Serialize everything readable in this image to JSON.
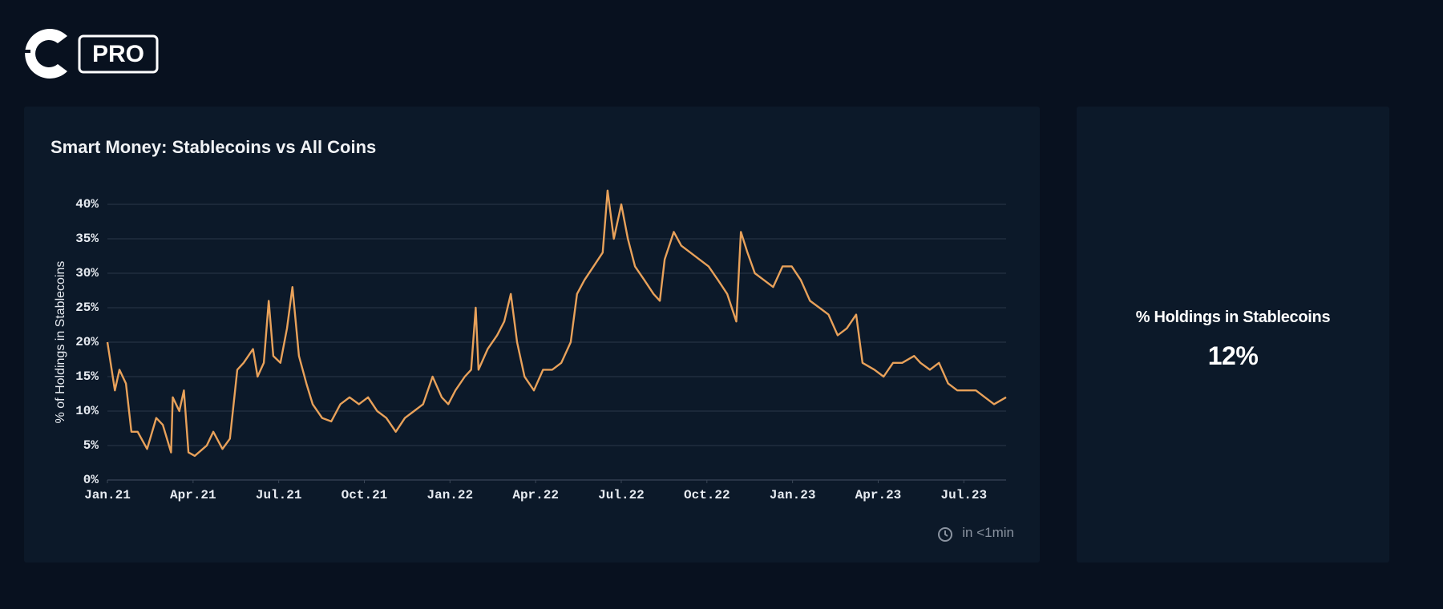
{
  "header": {
    "badge": "PRO"
  },
  "chart_data": {
    "type": "line",
    "title": "Smart Money: Stablecoins vs All Coins",
    "ylabel": "% of Holdings in Stablecoins",
    "color": "#e8a15a",
    "grid": true,
    "x": [
      0,
      0.26,
      0.42,
      0.65,
      0.84,
      1.06,
      1.39,
      1.71,
      1.94,
      2.23,
      2.29,
      2.52,
      2.68,
      2.84,
      3.06,
      3.48,
      3.71,
      4.03,
      4.29,
      4.55,
      4.77,
      5.1,
      5.26,
      5.48,
      5.65,
      5.81,
      6.06,
      6.29,
      6.48,
      6.71,
      6.97,
      7.19,
      7.52,
      7.84,
      8.16,
      8.48,
      8.81,
      9.13,
      9.45,
      9.77,
      10.1,
      10.42,
      10.74,
      11.06,
      11.39,
      11.71,
      11.94,
      12.19,
      12.52,
      12.74,
      12.9,
      13,
      13.32,
      13.65,
      13.9,
      14.13,
      14.35,
      14.61,
      14.94,
      15.26,
      15.58,
      15.9,
      16.23,
      16.45,
      16.71,
      17.03,
      17.35,
      17.52,
      17.74,
      18,
      18.23,
      18.48,
      18.81,
      19.13,
      19.35,
      19.52,
      19.84,
      20.1,
      20.42,
      20.74,
      21.06,
      21.39,
      21.71,
      22.03,
      22.19,
      22.42,
      22.68,
      23,
      23.32,
      23.65,
      23.97,
      24.29,
      24.61,
      24.94,
      25.26,
      25.58,
      25.9,
      26.23,
      26.45,
      26.87,
      27.19,
      27.52,
      27.84,
      28.26,
      28.48,
      28.81,
      29.13,
      29.45,
      29.77,
      30.1,
      30.42,
      30.74,
      31.06,
      31.48
    ],
    "values": [
      20,
      13,
      16,
      14,
      7,
      7,
      4.5,
      9,
      8,
      4,
      12,
      10,
      13,
      4,
      3.5,
      5,
      7,
      4.5,
      6,
      16,
      17,
      19,
      15,
      17,
      26,
      18,
      17,
      22,
      28,
      18,
      14,
      11,
      9,
      8.5,
      11,
      12,
      11,
      12,
      10,
      9,
      7,
      9,
      10,
      11,
      15,
      12,
      11,
      13,
      15,
      16,
      25,
      16,
      19,
      21,
      23,
      27,
      20,
      15,
      13,
      16,
      16,
      17,
      20,
      27,
      29,
      31,
      33,
      42,
      35,
      40,
      35,
      31,
      29,
      27,
      26,
      32,
      36,
      34,
      33,
      32,
      31,
      29,
      27,
      23,
      36,
      33,
      30,
      29,
      28,
      31,
      31,
      29,
      26,
      25,
      24,
      21,
      22,
      24,
      17,
      16,
      15,
      17,
      17,
      18,
      17,
      16,
      17,
      14,
      13,
      13,
      13,
      12,
      11,
      12
    ],
    "xlim": [
      0,
      31.48
    ],
    "xticks": [
      {
        "value": 0,
        "label": "Jan.21"
      },
      {
        "value": 3,
        "label": "Apr.21"
      },
      {
        "value": 6,
        "label": "Jul.21"
      },
      {
        "value": 9,
        "label": "Oct.21"
      },
      {
        "value": 12,
        "label": "Jan.22"
      },
      {
        "value": 15,
        "label": "Apr.22"
      },
      {
        "value": 18,
        "label": "Jul.22"
      },
      {
        "value": 21,
        "label": "Oct.22"
      },
      {
        "value": 24,
        "label": "Jan.23"
      },
      {
        "value": 27,
        "label": "Apr.23"
      },
      {
        "value": 30,
        "label": "Jul.23"
      }
    ],
    "ylim": [
      0,
      40
    ],
    "yticks": [
      {
        "value": 0,
        "label": "0%"
      },
      {
        "value": 5,
        "label": "5%"
      },
      {
        "value": 10,
        "label": "10%"
      },
      {
        "value": 15,
        "label": "15%"
      },
      {
        "value": 20,
        "label": "20%"
      },
      {
        "value": 25,
        "label": "25%"
      },
      {
        "value": 30,
        "label": "30%"
      },
      {
        "value": 35,
        "label": "35%"
      },
      {
        "value": 40,
        "label": "40%"
      }
    ]
  },
  "refresh_note": "in <1min",
  "stat": {
    "label": "% Holdings in Stablecoins",
    "value": "12%"
  }
}
